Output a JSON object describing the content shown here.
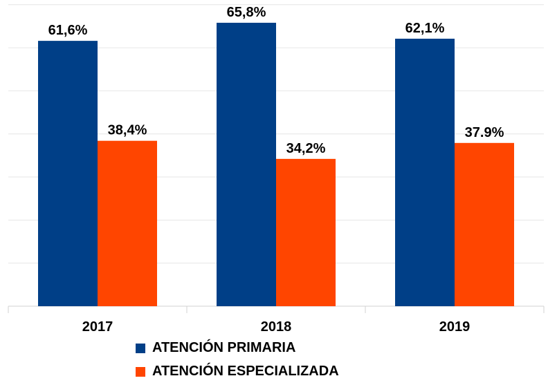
{
  "chart_data": {
    "type": "bar",
    "categories": [
      "2017",
      "2018",
      "2019"
    ],
    "series": [
      {
        "name": "ATENCIÓN PRIMARIA",
        "values": [
          61.6,
          65.8,
          62.1
        ],
        "labels": [
          "61,6%",
          "65,8%",
          "62,1%"
        ],
        "color": "#003f87"
      },
      {
        "name": "ATENCIÓN ESPECIALIZADA",
        "values": [
          38.4,
          34.2,
          37.9
        ],
        "labels": [
          "38,4%",
          "34,2%",
          "37.9%"
        ],
        "color": "#ff4500"
      }
    ],
    "ylim": [
      0,
      70
    ],
    "grid": true,
    "legend": "bottom"
  }
}
